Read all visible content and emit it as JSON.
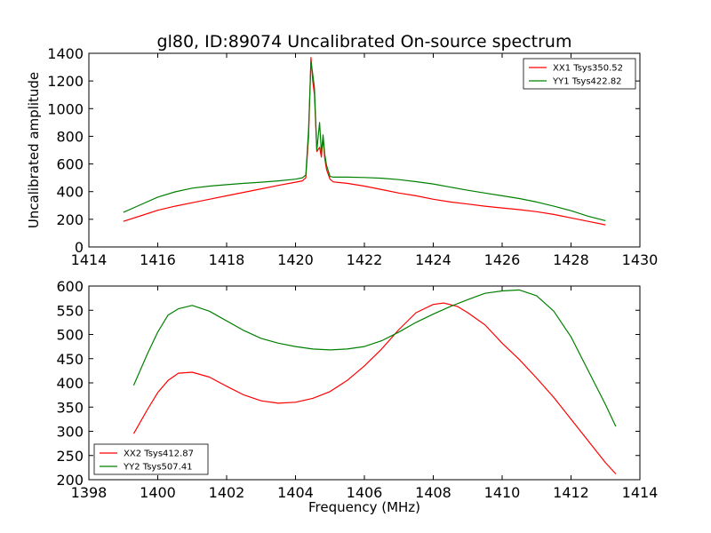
{
  "figure": {
    "title": "gl80, ID:89074 Uncalibrated On-source spectrum",
    "xlabel": "Frequency (MHz)"
  },
  "chart_data": [
    {
      "type": "line",
      "title": "gl80, ID:89074 Uncalibrated On-source spectrum",
      "xlabel": "",
      "ylabel": "Uncalibrated amplitude",
      "xlim": [
        1414,
        1430
      ],
      "ylim": [
        0,
        1400
      ],
      "xticks": [
        1414,
        1416,
        1418,
        1420,
        1422,
        1424,
        1426,
        1428,
        1430
      ],
      "yticks": [
        0,
        200,
        400,
        600,
        800,
        1000,
        1200,
        1400
      ],
      "legend": "top-right",
      "grid": false,
      "series": [
        {
          "name": "XX1 Tsys350.52",
          "color": "#ff0000",
          "x": [
            1415.0,
            1415.5,
            1416.0,
            1416.5,
            1417.0,
            1417.5,
            1418.0,
            1418.5,
            1419.0,
            1419.5,
            1420.0,
            1420.2,
            1420.3,
            1420.38,
            1420.45,
            1420.5,
            1420.55,
            1420.62,
            1420.7,
            1420.75,
            1420.8,
            1420.85,
            1420.9,
            1421.0,
            1421.1,
            1421.5,
            1422.0,
            1422.5,
            1423.0,
            1423.5,
            1424.0,
            1424.5,
            1425.0,
            1425.5,
            1426.0,
            1426.5,
            1427.0,
            1427.5,
            1428.0,
            1428.5,
            1429.0
          ],
          "values": [
            185,
            225,
            265,
            295,
            320,
            345,
            370,
            395,
            420,
            445,
            468,
            478,
            500,
            800,
            1370,
            1200,
            1100,
            690,
            720,
            650,
            790,
            640,
            560,
            490,
            470,
            460,
            440,
            415,
            390,
            370,
            345,
            325,
            310,
            295,
            282,
            270,
            255,
            235,
            210,
            185,
            160
          ]
        },
        {
          "name": "YY1 Tsys422.82",
          "color": "#008000",
          "x": [
            1415.0,
            1415.5,
            1416.0,
            1416.5,
            1417.0,
            1417.5,
            1418.0,
            1418.5,
            1419.0,
            1419.5,
            1420.0,
            1420.2,
            1420.3,
            1420.38,
            1420.45,
            1420.5,
            1420.55,
            1420.62,
            1420.7,
            1420.75,
            1420.8,
            1420.85,
            1420.9,
            1421.0,
            1421.1,
            1421.5,
            1422.0,
            1422.5,
            1423.0,
            1423.5,
            1424.0,
            1424.5,
            1425.0,
            1425.5,
            1426.0,
            1426.5,
            1427.0,
            1427.5,
            1428.0,
            1428.5,
            1429.0
          ],
          "values": [
            250,
            305,
            360,
            398,
            425,
            440,
            450,
            460,
            468,
            478,
            490,
            500,
            520,
            850,
            1340,
            1250,
            1150,
            700,
            900,
            680,
            810,
            670,
            590,
            510,
            505,
            505,
            502,
            497,
            487,
            472,
            455,
            432,
            410,
            390,
            370,
            350,
            325,
            295,
            262,
            222,
            190
          ]
        }
      ]
    },
    {
      "type": "line",
      "title": "",
      "xlabel": "Frequency (MHz)",
      "ylabel": "",
      "xlim": [
        1398,
        1414
      ],
      "ylim": [
        200,
        600
      ],
      "xticks": [
        1398,
        1400,
        1402,
        1404,
        1406,
        1408,
        1410,
        1412,
        1414
      ],
      "yticks": [
        200,
        250,
        300,
        350,
        400,
        450,
        500,
        550,
        600
      ],
      "legend": "bottom-left",
      "grid": false,
      "series": [
        {
          "name": "XX2 Tsys412.87",
          "color": "#ff0000",
          "x": [
            1399.3,
            1399.7,
            1400.0,
            1400.3,
            1400.6,
            1401.0,
            1401.5,
            1402.0,
            1402.5,
            1403.0,
            1403.5,
            1404.0,
            1404.5,
            1405.0,
            1405.5,
            1406.0,
            1406.5,
            1407.0,
            1407.5,
            1408.0,
            1408.3,
            1408.7,
            1409.0,
            1409.5,
            1410.0,
            1410.5,
            1411.0,
            1411.5,
            1412.0,
            1412.5,
            1413.0,
            1413.3
          ],
          "values": [
            295,
            345,
            380,
            405,
            420,
            422,
            412,
            393,
            375,
            363,
            358,
            360,
            368,
            382,
            405,
            435,
            470,
            510,
            545,
            562,
            565,
            558,
            545,
            520,
            482,
            448,
            410,
            370,
            325,
            280,
            235,
            212
          ]
        },
        {
          "name": "YY2 Tsys507.41",
          "color": "#008000",
          "x": [
            1399.3,
            1399.7,
            1400.0,
            1400.3,
            1400.6,
            1401.0,
            1401.5,
            1402.0,
            1402.5,
            1403.0,
            1403.5,
            1404.0,
            1404.5,
            1405.0,
            1405.5,
            1406.0,
            1406.5,
            1407.0,
            1407.5,
            1408.0,
            1408.5,
            1409.0,
            1409.5,
            1410.0,
            1410.5,
            1411.0,
            1411.5,
            1412.0,
            1412.5,
            1413.0,
            1413.3
          ],
          "values": [
            395,
            460,
            505,
            540,
            553,
            560,
            548,
            528,
            508,
            492,
            482,
            475,
            470,
            468,
            470,
            475,
            487,
            505,
            525,
            542,
            558,
            572,
            585,
            590,
            592,
            580,
            548,
            495,
            425,
            355,
            310
          ]
        }
      ]
    }
  ]
}
